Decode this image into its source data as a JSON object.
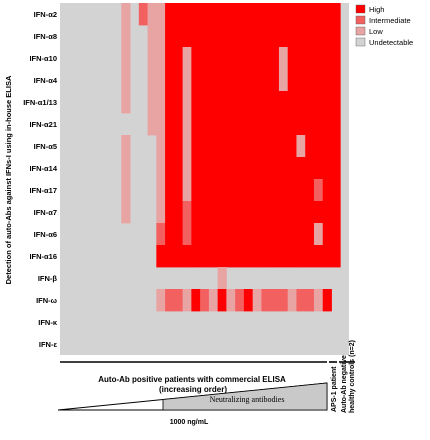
{
  "chart_data": {
    "type": "heatmap",
    "y_axis_label": "Detection of auto-Abs against IFNs-I using in-house ELISA",
    "rows": [
      "IFN-α2",
      "IFN-α8",
      "IFN-α10",
      "IFN-α4",
      "IFN-α1/13",
      "IFN-α21",
      "IFN-α5",
      "IFN-α14",
      "IFN-α17",
      "IFN-α7",
      "IFN-α6",
      "IFN-α16",
      "IFN-β",
      "IFN-ω",
      "IFN-κ",
      "IFN-ε"
    ],
    "levels": [
      "Undetectable",
      "Low",
      "Intermediate",
      "High"
    ],
    "legend": [
      {
        "label": "High",
        "color": "#ff0000"
      },
      {
        "label": "Intermediate",
        "color": "#f26160"
      },
      {
        "label": "Low",
        "color": "#e8a3a3"
      },
      {
        "label": "Undetectable",
        "color": "#d3d3d3"
      }
    ],
    "colors": [
      "#d3d3d3",
      "#e8a3a3",
      "#f26160",
      "#ff0000"
    ],
    "matrix": [
      [
        0,
        0,
        0,
        0,
        0,
        0,
        0,
        1,
        0,
        2,
        1,
        1,
        3,
        3,
        3,
        3,
        3,
        3,
        3,
        3,
        3,
        3,
        3,
        3,
        3,
        3,
        3,
        3,
        3,
        3,
        3,
        3,
        0
      ],
      [
        0,
        0,
        0,
        0,
        0,
        0,
        0,
        1,
        0,
        0,
        1,
        1,
        3,
        3,
        3,
        3,
        3,
        3,
        3,
        3,
        3,
        3,
        3,
        3,
        3,
        3,
        3,
        3,
        3,
        3,
        3,
        3,
        0
      ],
      [
        0,
        0,
        0,
        0,
        0,
        0,
        0,
        1,
        0,
        0,
        1,
        1,
        3,
        3,
        1,
        3,
        3,
        3,
        3,
        3,
        3,
        3,
        3,
        3,
        3,
        1,
        3,
        3,
        3,
        3,
        3,
        3,
        0
      ],
      [
        0,
        0,
        0,
        0,
        0,
        0,
        0,
        1,
        0,
        0,
        1,
        1,
        3,
        3,
        1,
        3,
        3,
        3,
        3,
        3,
        3,
        3,
        3,
        3,
        3,
        1,
        3,
        3,
        3,
        3,
        3,
        3,
        0
      ],
      [
        0,
        0,
        0,
        0,
        0,
        0,
        0,
        1,
        0,
        0,
        1,
        1,
        3,
        3,
        1,
        3,
        3,
        3,
        3,
        3,
        3,
        3,
        3,
        3,
        3,
        3,
        3,
        3,
        3,
        3,
        3,
        3,
        0
      ],
      [
        0,
        0,
        0,
        0,
        0,
        0,
        0,
        0,
        0,
        0,
        1,
        1,
        3,
        3,
        1,
        3,
        3,
        3,
        3,
        3,
        3,
        3,
        3,
        3,
        3,
        3,
        3,
        3,
        3,
        3,
        3,
        3,
        0
      ],
      [
        0,
        0,
        0,
        0,
        0,
        0,
        0,
        1,
        0,
        0,
        0,
        1,
        3,
        3,
        1,
        3,
        3,
        3,
        3,
        3,
        3,
        3,
        3,
        3,
        3,
        3,
        3,
        1,
        3,
        3,
        3,
        3,
        0
      ],
      [
        0,
        0,
        0,
        0,
        0,
        0,
        0,
        1,
        0,
        0,
        0,
        1,
        3,
        3,
        1,
        3,
        3,
        3,
        3,
        3,
        3,
        3,
        3,
        3,
        3,
        3,
        3,
        3,
        3,
        3,
        3,
        3,
        0
      ],
      [
        0,
        0,
        0,
        0,
        0,
        0,
        0,
        1,
        0,
        0,
        0,
        1,
        3,
        3,
        1,
        3,
        3,
        3,
        3,
        3,
        3,
        3,
        3,
        3,
        3,
        3,
        3,
        3,
        3,
        2,
        3,
        3,
        0
      ],
      [
        0,
        0,
        0,
        0,
        0,
        0,
        0,
        1,
        0,
        0,
        0,
        1,
        3,
        3,
        2,
        3,
        3,
        3,
        3,
        3,
        3,
        3,
        3,
        3,
        3,
        3,
        3,
        3,
        3,
        3,
        3,
        3,
        0
      ],
      [
        0,
        0,
        0,
        0,
        0,
        0,
        0,
        0,
        0,
        0,
        0,
        2,
        3,
        3,
        2,
        3,
        3,
        3,
        3,
        3,
        3,
        3,
        3,
        3,
        3,
        3,
        3,
        3,
        3,
        1,
        3,
        3,
        0
      ],
      [
        0,
        0,
        0,
        0,
        0,
        0,
        0,
        0,
        0,
        0,
        0,
        3,
        3,
        3,
        3,
        3,
        3,
        3,
        3,
        3,
        3,
        3,
        3,
        3,
        3,
        3,
        3,
        3,
        3,
        3,
        3,
        3,
        0
      ],
      [
        0,
        0,
        0,
        0,
        0,
        0,
        0,
        0,
        0,
        0,
        0,
        0,
        0,
        0,
        0,
        0,
        0,
        0,
        1,
        0,
        0,
        0,
        0,
        0,
        0,
        0,
        0,
        0,
        0,
        0,
        0,
        0,
        0
      ],
      [
        0,
        0,
        0,
        0,
        0,
        0,
        0,
        0,
        0,
        0,
        0,
        1,
        2,
        2,
        1,
        3,
        2,
        1,
        3,
        1,
        2,
        3,
        1,
        2,
        2,
        2,
        1,
        2,
        2,
        1,
        3,
        0,
        0
      ],
      [
        0,
        0,
        0,
        0,
        0,
        0,
        0,
        0,
        0,
        0,
        0,
        0,
        0,
        0,
        0,
        0,
        0,
        0,
        0,
        0,
        0,
        0,
        0,
        0,
        0,
        0,
        0,
        0,
        0,
        0,
        0,
        0,
        0
      ],
      [
        0,
        0,
        0,
        0,
        0,
        0,
        0,
        0,
        0,
        0,
        0,
        0,
        0,
        0,
        0,
        0,
        0,
        0,
        0,
        0,
        0,
        0,
        0,
        0,
        0,
        0,
        0,
        0,
        0,
        0,
        0,
        0,
        0
      ]
    ],
    "x_groups": [
      {
        "label": "Auto-Ab positive patients with commercial ELISA\n(increasing order)",
        "columns": 30
      },
      {
        "label": "APS-1 patient",
        "columns": 1
      },
      {
        "label": "Auto-Ab negative\nhealthy controls (n=2)",
        "columns": 2
      }
    ],
    "annotations": {
      "wedge_label": "Neutralizing antibodies",
      "threshold": "1000 ng/mL"
    }
  }
}
